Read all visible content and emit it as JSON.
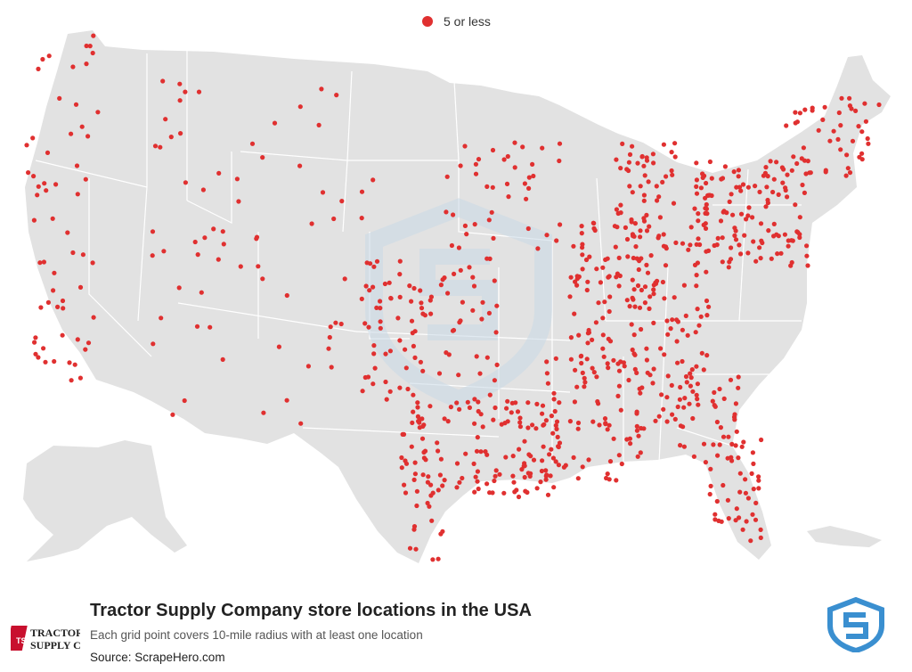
{
  "legend": {
    "label": "5 or less",
    "color": "#e03030"
  },
  "title": "Tractor Supply Company store locations in the USA",
  "subtitle": "Each grid point covers 10-mile radius with at least one location",
  "source": "Source: ScrapeHero.com",
  "brand_logo": {
    "line1": "TRACTOR",
    "line2": "SUPPLY Co",
    "badge": "TSC"
  },
  "colors": {
    "land": "#e2e2e2",
    "borders": "#ffffff",
    "dot": "#e03030",
    "watermark": "#c9d9e6",
    "logo": "#3a8fd0"
  },
  "icons": {
    "watermark": "scrapehero-shield-watermark",
    "logo": "scrapehero-shield-logo"
  }
}
